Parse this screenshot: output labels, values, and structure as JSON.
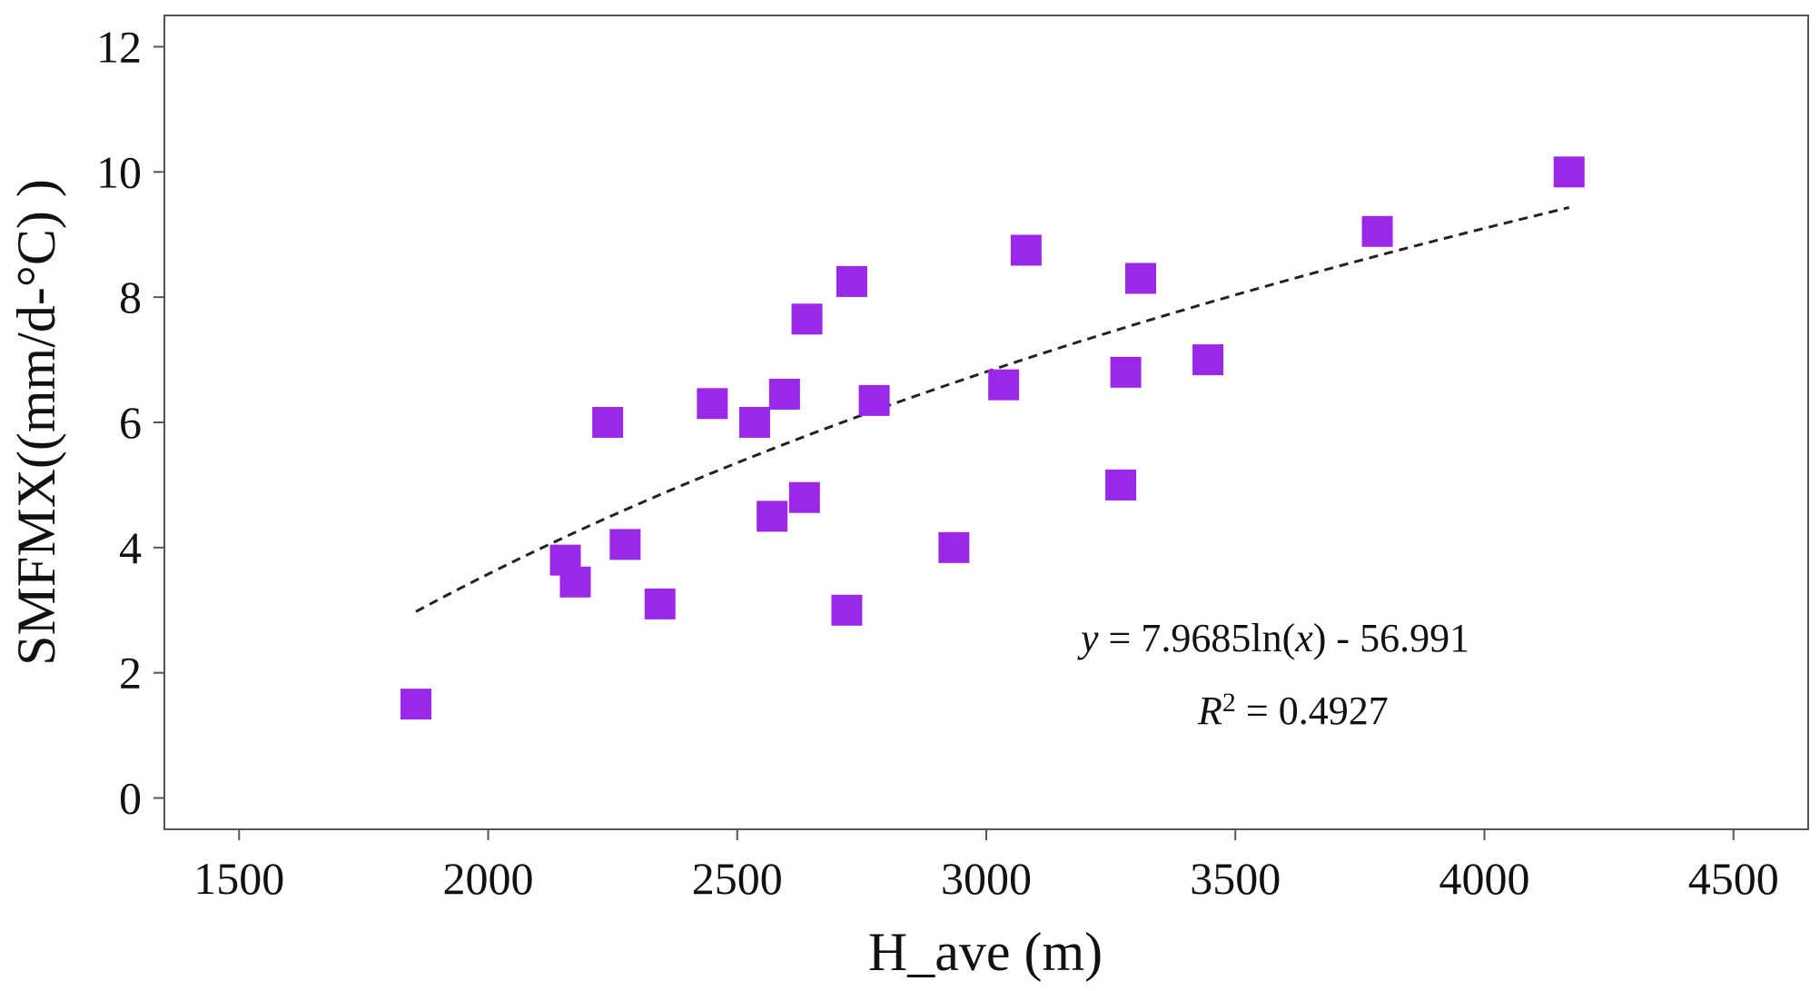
{
  "chart_data": {
    "type": "scatter",
    "title": "",
    "xlabel": "H_ave (m)",
    "ylabel": "SMFMX((mm/d-°C) )",
    "xlim": [
      1350,
      4650
    ],
    "ylim": [
      -0.5,
      12.5
    ],
    "xticks": [
      1500,
      2000,
      2500,
      3000,
      3500,
      4000,
      4500
    ],
    "yticks": [
      0,
      2,
      4,
      6,
      8,
      10,
      12
    ],
    "marker_color": "#9b27e8",
    "series": [
      {
        "name": "SMFMX",
        "points": [
          {
            "x": 1855,
            "y": 1.5
          },
          {
            "x": 2155,
            "y": 3.8
          },
          {
            "x": 2175,
            "y": 3.45
          },
          {
            "x": 2240,
            "y": 6.0
          },
          {
            "x": 2275,
            "y": 4.05
          },
          {
            "x": 2345,
            "y": 3.1
          },
          {
            "x": 2450,
            "y": 6.3
          },
          {
            "x": 2535,
            "y": 6.0
          },
          {
            "x": 2570,
            "y": 4.5
          },
          {
            "x": 2595,
            "y": 6.45
          },
          {
            "x": 2635,
            "y": 4.8
          },
          {
            "x": 2640,
            "y": 7.65
          },
          {
            "x": 2720,
            "y": 3.0
          },
          {
            "x": 2730,
            "y": 8.25
          },
          {
            "x": 2775,
            "y": 6.35
          },
          {
            "x": 2935,
            "y": 4.0
          },
          {
            "x": 3035,
            "y": 6.6
          },
          {
            "x": 3080,
            "y": 8.75
          },
          {
            "x": 3270,
            "y": 5.0
          },
          {
            "x": 3280,
            "y": 6.8
          },
          {
            "x": 3310,
            "y": 8.3
          },
          {
            "x": 3445,
            "y": 7.0
          },
          {
            "x": 3785,
            "y": 9.05
          },
          {
            "x": 4170,
            "y": 10.0
          }
        ]
      }
    ],
    "trendline": {
      "type": "logarithmic",
      "a": 7.9685,
      "b": -56.991,
      "x_range": [
        1855,
        4170
      ],
      "style": "dashed"
    },
    "annotations": {
      "equation": {
        "y_var": "y",
        "equals": " = ",
        "body": "7.9685ln(",
        "x_var": "x",
        "tail": ") - 56.991"
      },
      "r2": {
        "label": "R",
        "exponent": "2",
        "value": " = 0.4927"
      }
    }
  }
}
